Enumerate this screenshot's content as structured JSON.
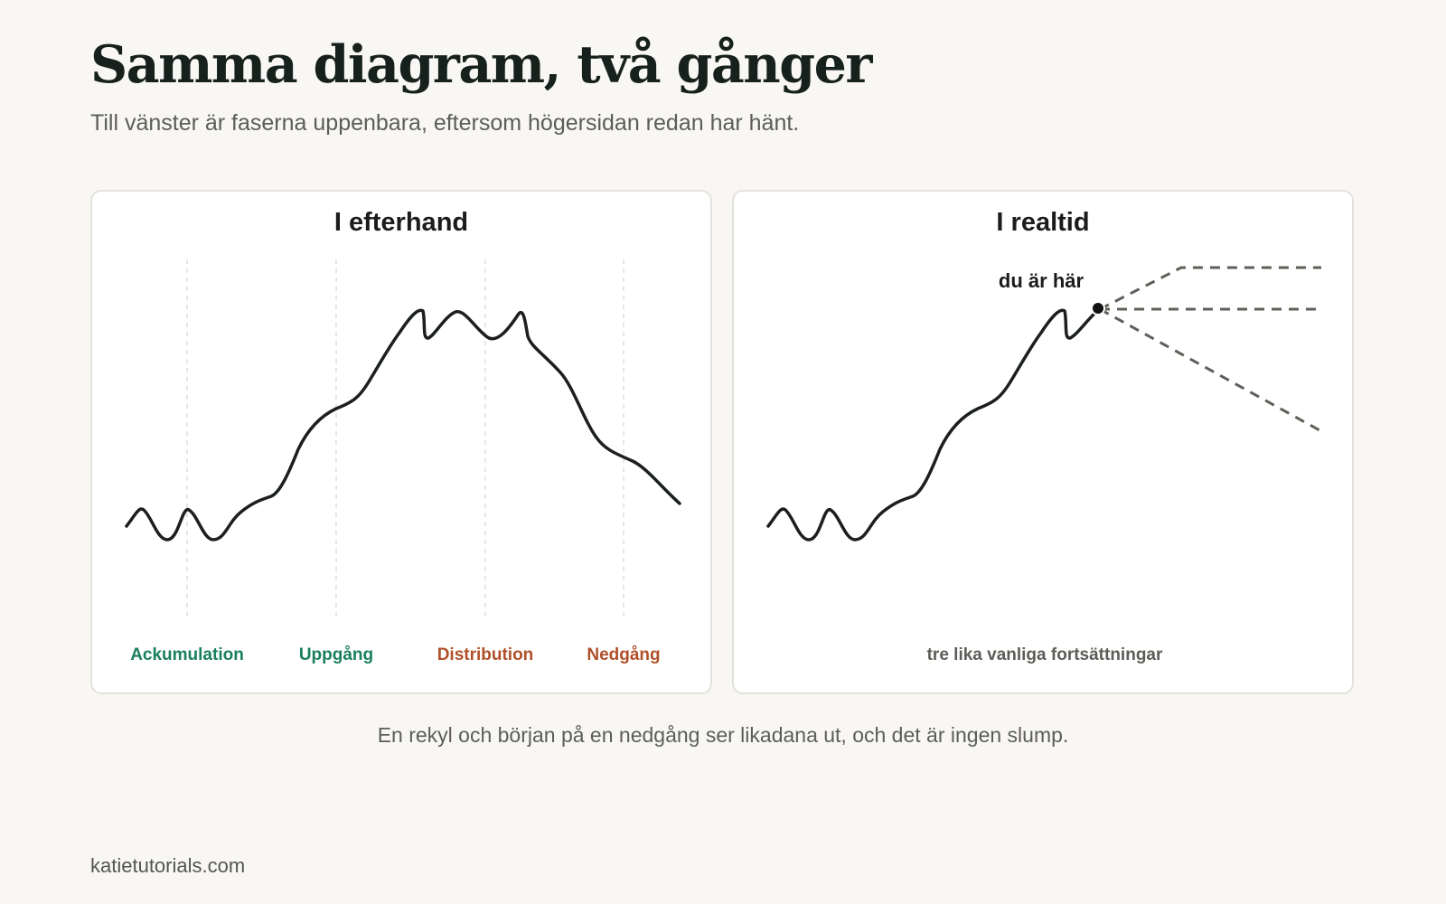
{
  "title": "Samma diagram, två gånger",
  "subtitle": "Till vänster är faserna uppenbara, eftersom högersidan redan har hänt.",
  "colors": {
    "background": "#f8f7f3",
    "line": "#1b1f1d",
    "rise": "#1a7f5f",
    "fall": "#b0502a",
    "muted": "#5d5d58",
    "dashed": "#5f5f5a"
  },
  "panels": {
    "left": {
      "title": "I efterhand",
      "phases": [
        {
          "label": "Ackumulation",
          "tone": "rise"
        },
        {
          "label": "Uppgång",
          "tone": "rise"
        },
        {
          "label": "Distribution",
          "tone": "fall"
        },
        {
          "label": "Nedgång",
          "tone": "fall"
        }
      ]
    },
    "right": {
      "title": "I realtid",
      "marker_label": "du är här",
      "bottom_label": "tre lika vanliga fortsättningar"
    }
  },
  "caption": "En rekyl och början på en nedgång ser likadana ut, och det är ingen slump.",
  "footer": "katietutorials.com"
}
